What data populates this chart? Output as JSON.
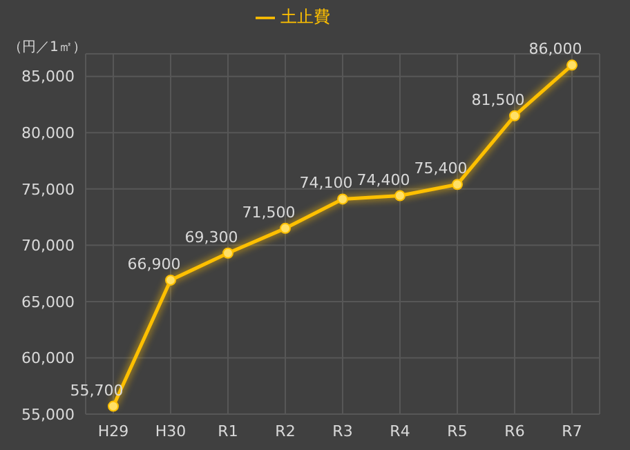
{
  "chart_data": {
    "type": "line",
    "ylabel": "（円／1㎡）",
    "categories": [
      "H29",
      "H30",
      "R1",
      "R2",
      "R3",
      "R4",
      "R5",
      "R6",
      "R7"
    ],
    "series": [
      {
        "name": "土止費",
        "color": "#ffc000",
        "values": [
          55700,
          66900,
          69300,
          71500,
          74100,
          74400,
          75400,
          81500,
          86000
        ],
        "value_labels": [
          "55,700",
          "66,900",
          "69,300",
          "71,500",
          "74,100",
          "74,400",
          "75,400",
          "81,500",
          "86,000"
        ]
      }
    ],
    "ylim": [
      55000,
      87000
    ],
    "yticks": [
      {
        "value": 55000,
        "label": "55,000"
      },
      {
        "value": 60000,
        "label": "60,000"
      },
      {
        "value": 65000,
        "label": "65,000"
      },
      {
        "value": 70000,
        "label": "70,000"
      },
      {
        "value": 75000,
        "label": "75,000"
      },
      {
        "value": 80000,
        "label": "80,000"
      },
      {
        "value": 85000,
        "label": "85,000"
      }
    ],
    "grid": true,
    "legend": "top",
    "marker": "circle",
    "line_style": "solid"
  }
}
